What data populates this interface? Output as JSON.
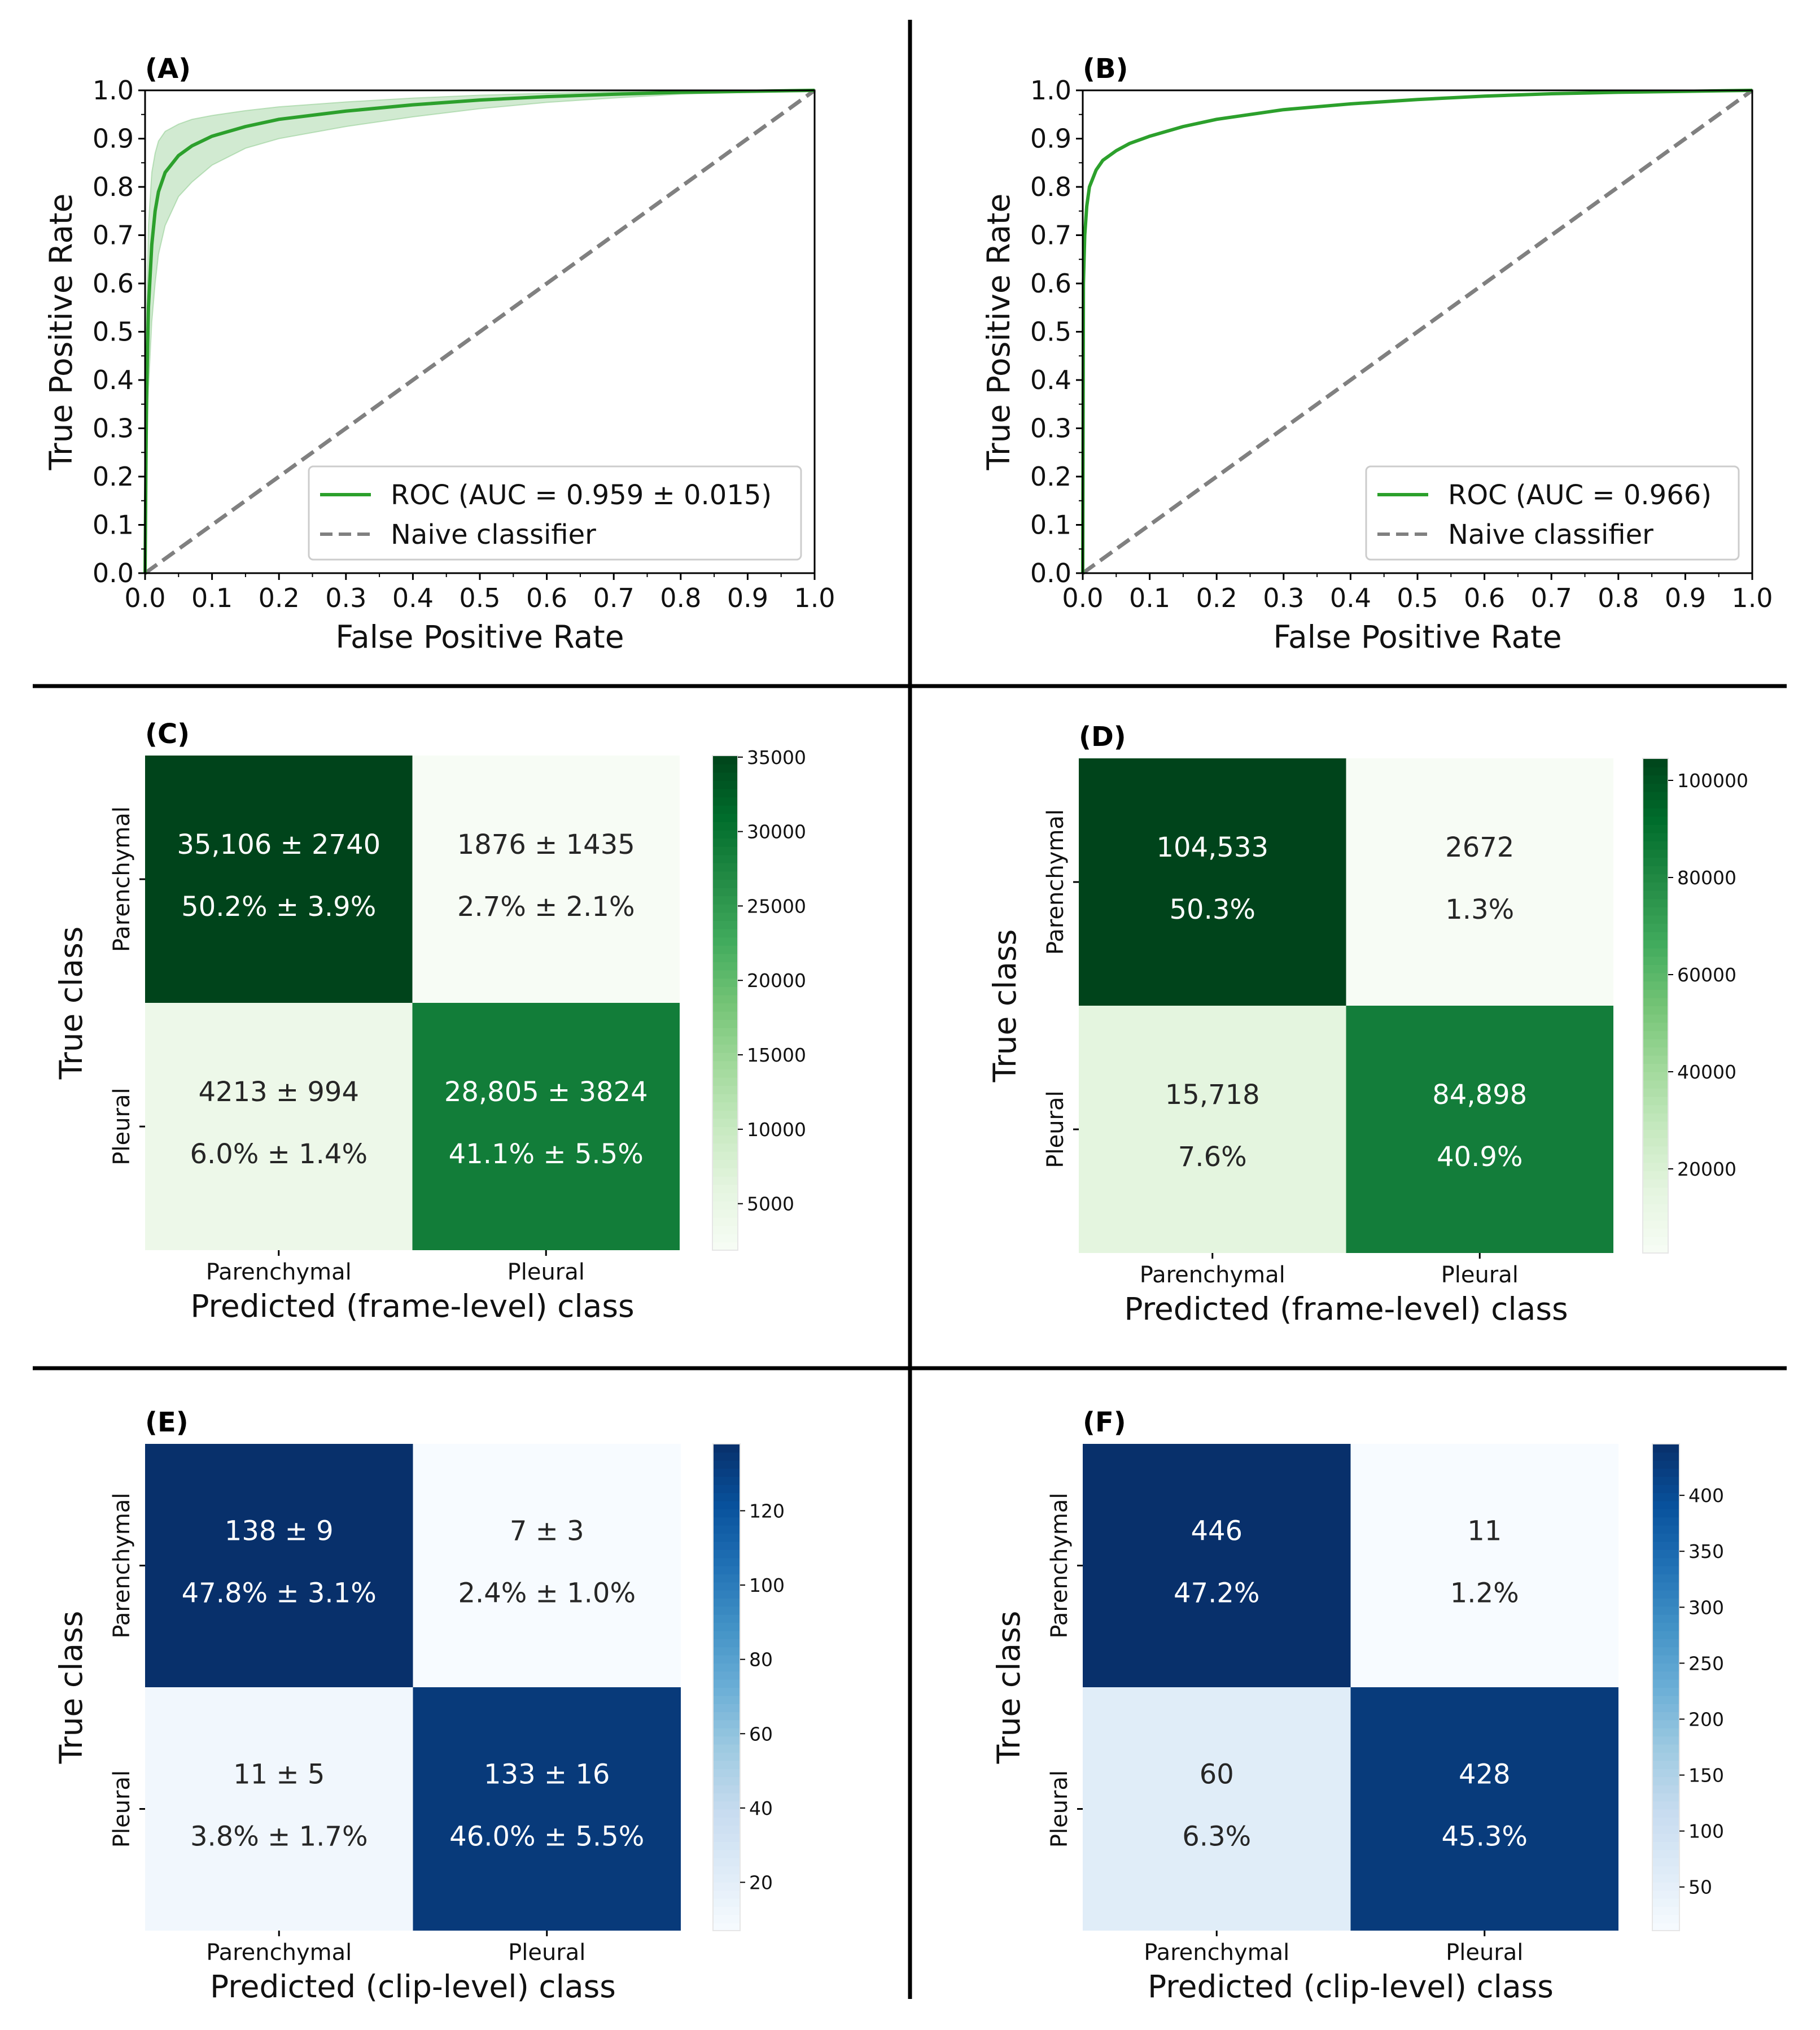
{
  "chart_data": [
    {
      "panel": "(A)",
      "type": "line",
      "xlabel": "False Positive Rate",
      "ylabel": "True Positive Rate",
      "xlim": [
        0.0,
        1.0
      ],
      "ylim": [
        0.0,
        1.0
      ],
      "xticks": [
        "0.0",
        "0.1",
        "0.2",
        "0.3",
        "0.4",
        "0.5",
        "0.6",
        "0.7",
        "0.8",
        "0.9",
        "1.0"
      ],
      "yticks": [
        "0.0",
        "0.1",
        "0.2",
        "0.3",
        "0.4",
        "0.5",
        "0.6",
        "0.7",
        "0.8",
        "0.9",
        "1.0"
      ],
      "series": [
        {
          "name": "ROC (AUC = 0.959 ± 0.015)",
          "color": "#2ca02c",
          "x": [
            0.0,
            0.002,
            0.005,
            0.01,
            0.015,
            0.02,
            0.03,
            0.05,
            0.07,
            0.1,
            0.15,
            0.2,
            0.3,
            0.4,
            0.5,
            0.6,
            0.7,
            0.8,
            0.9,
            1.0
          ],
          "y": [
            0.0,
            0.35,
            0.55,
            0.68,
            0.75,
            0.79,
            0.83,
            0.865,
            0.885,
            0.905,
            0.925,
            0.94,
            0.957,
            0.97,
            0.98,
            0.987,
            0.992,
            0.996,
            0.998,
            1.0
          ],
          "y_upper": [
            0.0,
            0.5,
            0.72,
            0.83,
            0.87,
            0.895,
            0.915,
            0.93,
            0.94,
            0.948,
            0.958,
            0.966,
            0.976,
            0.984,
            0.99,
            0.994,
            0.997,
            0.998,
            0.999,
            1.0
          ],
          "y_lower": [
            0.0,
            0.2,
            0.38,
            0.52,
            0.6,
            0.66,
            0.72,
            0.78,
            0.81,
            0.845,
            0.88,
            0.9,
            0.925,
            0.945,
            0.962,
            0.975,
            0.984,
            0.992,
            0.996,
            1.0
          ]
        },
        {
          "name": "Naive classifier",
          "color": "#808080",
          "dashed": true,
          "x": [
            0.0,
            1.0
          ],
          "y": [
            0.0,
            1.0
          ]
        }
      ],
      "legend": [
        "ROC (AUC = 0.959 ± 0.015)",
        "Naive classifier"
      ],
      "legend_loc": "lower-right"
    },
    {
      "panel": "(B)",
      "type": "line",
      "xlabel": "False Positive Rate",
      "ylabel": "True Positive Rate",
      "xlim": [
        0.0,
        1.0
      ],
      "ylim": [
        0.0,
        1.0
      ],
      "xticks": [
        "0.0",
        "0.1",
        "0.2",
        "0.3",
        "0.4",
        "0.5",
        "0.6",
        "0.7",
        "0.8",
        "0.9",
        "1.0"
      ],
      "yticks": [
        "0.0",
        "0.1",
        "0.2",
        "0.3",
        "0.4",
        "0.5",
        "0.6",
        "0.7",
        "0.8",
        "0.9",
        "1.0"
      ],
      "series": [
        {
          "name": "ROC (AUC = 0.966)",
          "color": "#2ca02c",
          "x": [
            0.0,
            0.001,
            0.003,
            0.006,
            0.01,
            0.02,
            0.03,
            0.05,
            0.07,
            0.1,
            0.15,
            0.2,
            0.3,
            0.4,
            0.5,
            0.6,
            0.7,
            0.8,
            0.9,
            1.0
          ],
          "y": [
            0.0,
            0.6,
            0.7,
            0.76,
            0.8,
            0.835,
            0.855,
            0.875,
            0.89,
            0.905,
            0.925,
            0.94,
            0.96,
            0.972,
            0.981,
            0.988,
            0.993,
            0.996,
            0.998,
            1.0
          ]
        },
        {
          "name": "Naive classifier",
          "color": "#808080",
          "dashed": true,
          "x": [
            0.0,
            1.0
          ],
          "y": [
            0.0,
            1.0
          ]
        }
      ],
      "legend": [
        "ROC (AUC = 0.966)",
        "Naive classifier"
      ],
      "legend_loc": "lower-right"
    },
    {
      "panel": "(C)",
      "type": "heatmap",
      "cmap": "greens",
      "xlabel": "Predicted (frame-level) class",
      "ylabel": "True class",
      "x_categories": [
        "Parenchymal",
        "Pleural"
      ],
      "y_categories": [
        "Parenchymal",
        "Pleural"
      ],
      "values": [
        [
          35106,
          1876
        ],
        [
          4213,
          28805
        ]
      ],
      "cells": [
        [
          {
            "count": "35,106 ± 2740",
            "pct": "50.2% ± 3.9%"
          },
          {
            "count": "1876 ± 1435",
            "pct": "2.7% ± 2.1%"
          }
        ],
        [
          {
            "count": "4213 ± 994",
            "pct": "6.0% ± 1.4%"
          },
          {
            "count": "28,805 ± 3824",
            "pct": "41.1% ± 5.5%"
          }
        ]
      ],
      "colorbar_range": [
        1876,
        35106
      ],
      "colorbar_ticks": [
        5000,
        10000,
        15000,
        20000,
        25000,
        30000,
        35000
      ]
    },
    {
      "panel": "(D)",
      "type": "heatmap",
      "cmap": "greens",
      "xlabel": "Predicted (frame-level) class",
      "ylabel": "True class",
      "x_categories": [
        "Parenchymal",
        "Pleural"
      ],
      "y_categories": [
        "Parenchymal",
        "Pleural"
      ],
      "values": [
        [
          104533,
          2672
        ],
        [
          15718,
          84898
        ]
      ],
      "cells": [
        [
          {
            "count": "104,533",
            "pct": "50.3%"
          },
          {
            "count": "2672",
            "pct": "1.3%"
          }
        ],
        [
          {
            "count": "15,718",
            "pct": "7.6%"
          },
          {
            "count": "84,898",
            "pct": "40.9%"
          }
        ]
      ],
      "colorbar_range": [
        2672,
        104533
      ],
      "colorbar_ticks": [
        20000,
        40000,
        60000,
        80000,
        100000
      ]
    },
    {
      "panel": "(E)",
      "type": "heatmap",
      "cmap": "blues",
      "xlabel": "Predicted (clip-level) class",
      "ylabel": "True class",
      "x_categories": [
        "Parenchymal",
        "Pleural"
      ],
      "y_categories": [
        "Parenchymal",
        "Pleural"
      ],
      "values": [
        [
          138,
          7
        ],
        [
          11,
          133
        ]
      ],
      "cells": [
        [
          {
            "count": "138 ± 9",
            "pct": "47.8% ± 3.1%"
          },
          {
            "count": "7 ± 3",
            "pct": "2.4% ± 1.0%"
          }
        ],
        [
          {
            "count": "11 ± 5",
            "pct": "3.8% ± 1.7%"
          },
          {
            "count": "133 ± 16",
            "pct": "46.0% ± 5.5%"
          }
        ]
      ],
      "colorbar_range": [
        7,
        138
      ],
      "colorbar_ticks": [
        20,
        40,
        60,
        80,
        100,
        120
      ]
    },
    {
      "panel": "(F)",
      "type": "heatmap",
      "cmap": "blues",
      "xlabel": "Predicted (clip-level) class",
      "ylabel": "True class",
      "x_categories": [
        "Parenchymal",
        "Pleural"
      ],
      "y_categories": [
        "Parenchymal",
        "Pleural"
      ],
      "values": [
        [
          446,
          11
        ],
        [
          60,
          428
        ]
      ],
      "cells": [
        [
          {
            "count": "446",
            "pct": "47.2%"
          },
          {
            "count": "11",
            "pct": "1.2%"
          }
        ],
        [
          {
            "count": "60",
            "pct": "6.3%"
          },
          {
            "count": "428",
            "pct": "45.3%"
          }
        ]
      ],
      "colorbar_range": [
        11,
        446
      ],
      "colorbar_ticks": [
        50,
        100,
        150,
        200,
        250,
        300,
        350,
        400
      ]
    }
  ]
}
